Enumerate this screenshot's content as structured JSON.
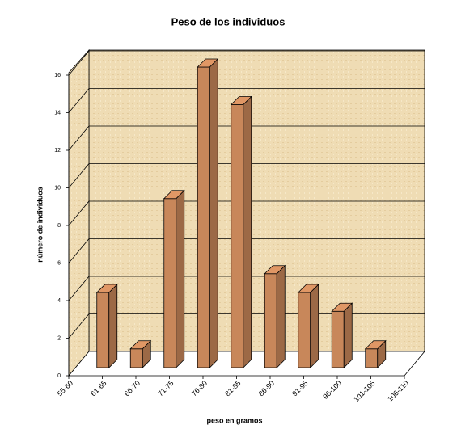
{
  "chart_data": {
    "type": "bar3d",
    "title": "Peso de los individuos",
    "x_label": "peso en gramos",
    "y_label": "número de individuos",
    "categories": [
      "55-60",
      "61-65",
      "66-70",
      "71-75",
      "76-80",
      "81-85",
      "86-90",
      "91-95",
      "96-100",
      "101-105",
      "106-110"
    ],
    "values": [
      0,
      4,
      1,
      9,
      16,
      14,
      5,
      4,
      3,
      1,
      0
    ],
    "color": "#c8875a",
    "ylim": [
      0,
      16
    ],
    "yticks": [
      0,
      2,
      4,
      6,
      8,
      10,
      12,
      14,
      16
    ],
    "grid": true
  }
}
